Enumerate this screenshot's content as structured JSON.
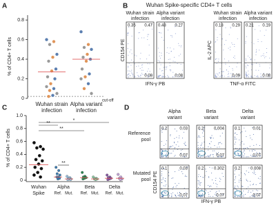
{
  "panel_a": {
    "letter": "A",
    "ylabel": "% of CD4+ T cells",
    "ylim": [
      0,
      0.85
    ],
    "yticks": [
      0,
      0.2,
      0.4,
      0.6,
      0.8
    ],
    "cutoff": 0.02,
    "cutoff_label": "cut-off",
    "point_colors": [
      "#5b7fb0",
      "#e0955a",
      "#9a9a9a"
    ],
    "median_color": "#e05a5a",
    "groups": [
      {
        "label": [
          "Wuhan strain",
          "infection"
        ],
        "values": [
          0.6,
          0.58,
          0.55,
          0.45,
          0.42,
          0.38,
          0.3,
          0.28,
          0.22,
          0.2,
          0.15,
          0.12,
          0.1,
          0.08,
          0.05,
          0.03,
          0.02
        ],
        "median": 0.27
      },
      {
        "label": [
          "Alpha variant",
          "infection"
        ],
        "values": [
          0.68,
          0.55,
          0.52,
          0.5,
          0.45,
          0.42,
          0.4,
          0.38,
          0.3,
          0.25,
          0.22,
          0.2,
          0.15,
          0.1,
          0.05
        ],
        "median": 0.4
      }
    ]
  },
  "panel_b": {
    "letter": "B",
    "title": "Wuhan Spike-specific CD4+ T cells",
    "axes": [
      {
        "x": "IFN-γ PB",
        "y": "CD154 PE"
      },
      {
        "x": "TNF-α FITC",
        "y": "IL-2 APC"
      }
    ],
    "plots": [
      {
        "title": [
          "Wuhan strain",
          "infection"
        ],
        "quadrants": [
          0.35,
          0.47,
          0.08
        ]
      },
      {
        "title": [
          "Alpha variant",
          "infection"
        ],
        "quadrants": [
          0.48,
          0.27,
          0.08
        ]
      },
      {
        "title": [
          "Wuhan strain",
          "infection"
        ],
        "quadrants": [
          0.18,
          0.29,
          0.09
        ]
      },
      {
        "title": [
          "Alpha variant",
          "infection"
        ],
        "quadrants": [
          0.21,
          0.19,
          0.08
        ]
      }
    ]
  },
  "panel_c": {
    "letter": "C",
    "ylabel": "% of CD4+ T cells",
    "ylim": [
      0,
      1
    ],
    "yticks": [
      0,
      0.2,
      0.4,
      0.6,
      0.8,
      {
        "value": 1,
        "label": "1.0"
      }
    ],
    "median_color": "#e05a5a",
    "significance": [
      "**",
      "**",
      "*",
      "**"
    ],
    "sublabels": [
      "Ref.",
      "Mut."
    ],
    "wuhan": {
      "label": [
        "Wuhan",
        "Spike"
      ],
      "color": "#111111",
      "values": [
        0.58,
        0.52,
        0.5,
        0.48,
        0.38,
        0.32,
        0.3,
        0.25,
        0.2,
        0.18,
        0.12,
        0.08,
        0.05
      ],
      "median": 0.24
    },
    "variants": [
      {
        "name": "Alpha",
        "ref": {
          "color": "#3f7fb5",
          "values": [
            0.2,
            0.15,
            0.1,
            0.08,
            0.05,
            0.05,
            0.03,
            0.02
          ],
          "median": 0.05
        },
        "mut": {
          "color": "#9cc4e4",
          "values": [
            0.06,
            0.04,
            0.03,
            0.02,
            0.02,
            0.01,
            0.01
          ],
          "median": 0.02
        }
      },
      {
        "name": "Beta",
        "ref": {
          "color": "#2f8a55",
          "values": [
            0.12,
            0.06,
            0.05,
            0.04,
            0.03,
            0.02
          ],
          "median": 0.04
        },
        "mut": {
          "color": "#8fcba3",
          "values": [
            0.05,
            0.03,
            0.02,
            0.02,
            0.01
          ],
          "median": 0.02
        }
      },
      {
        "name": "Delta",
        "ref": {
          "color": "#8a5aa8",
          "values": [
            0.08,
            0.05,
            0.04,
            0.03,
            0.02,
            0.01
          ],
          "median": 0.03
        },
        "mut": {
          "color": "#c7a7dc",
          "values": [
            0.09,
            0.05,
            0.03,
            0.02,
            0.01
          ],
          "median": 0.03
        }
      }
    ]
  },
  "panel_d": {
    "letter": "D",
    "xlabel": "IFN-γ PB",
    "ylabel": "CD154 PE",
    "columns": [
      [
        "Alpha",
        "variant"
      ],
      [
        "Beta",
        "variant"
      ],
      [
        "Delta",
        "variant"
      ]
    ],
    "rows": [
      {
        "label": [
          "Reference",
          "pool"
        ],
        "quadrants": [
          [
            0.2,
            0.03,
            0.07
          ],
          [
            0.2,
            0.004,
            0.07
          ],
          [
            0.1,
            0.01,
            0.07
          ]
        ]
      },
      {
        "label": [
          "Mutated",
          "pool"
        ],
        "quadrants": [
          [
            0.1,
            0.03,
            0.07
          ],
          [
            0.2,
            0.302,
            0.07
          ],
          [
            0.2,
            0.008,
            0.07
          ]
        ]
      }
    ]
  }
}
